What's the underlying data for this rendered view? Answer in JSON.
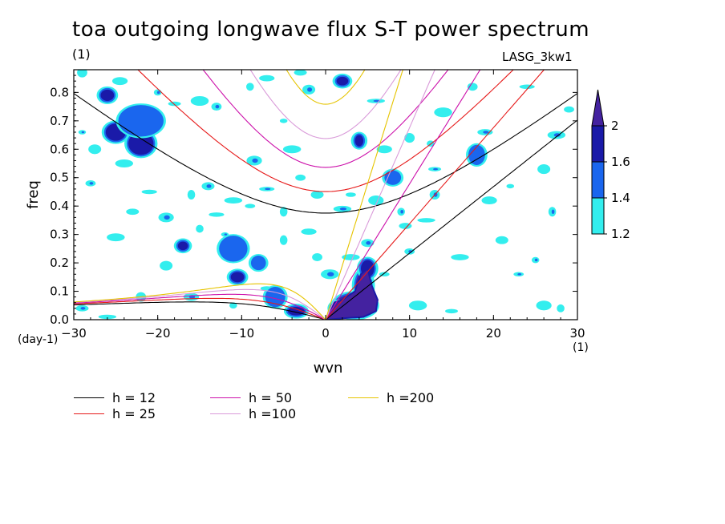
{
  "title": "toa outgoing longwave flux S-T power spectrum",
  "subtitle": "(1)",
  "model_label": "LASG_3kw1",
  "x_unit_left": "(day-1)",
  "x_unit_right": "(1)",
  "colorbar": {
    "levels": [
      1.2,
      1.4,
      1.6,
      2
    ],
    "tick_labels": [
      "1.2",
      "1.4",
      "1.6",
      "2"
    ],
    "colors": [
      "#33eeee",
      "#1a66ee",
      "#1a1aa8",
      "#4422a0"
    ]
  },
  "legend": [
    {
      "label": "h = 12",
      "color": "#000000"
    },
    {
      "label": "h = 25",
      "color": "#e61919"
    },
    {
      "label": "h = 50",
      "color": "#cc10aa"
    },
    {
      "label": "h =100",
      "color": "#d99ad9"
    },
    {
      "label": "h =200",
      "color": "#e6c400"
    }
  ],
  "chart_data": {
    "type": "heatmap",
    "title": "toa outgoing longwave flux S-T power spectrum",
    "xlabel": "wvn",
    "ylabel": "freq",
    "xlim": [
      -30,
      30
    ],
    "ylim": [
      0,
      0.88
    ],
    "xticks": [
      -30,
      -20,
      -10,
      0,
      10,
      20,
      30
    ],
    "yticks": [
      0,
      0.1,
      0.2,
      0.3,
      0.4,
      0.5,
      0.6,
      0.7,
      0.8
    ],
    "xtick_labels": [
      "−30",
      "−20",
      "−10",
      "0",
      "10",
      "20",
      "30"
    ],
    "ytick_labels": [
      "0.0",
      "0.1",
      "0.2",
      "0.3",
      "0.4",
      "0.5",
      "0.6",
      "0.7",
      "0.8"
    ],
    "contour_levels": [
      1.2,
      1.4,
      1.6,
      2
    ],
    "dispersion_curves_equivalent_depth_m": [
      12,
      25,
      50,
      100,
      200
    ],
    "regions": [
      {
        "x": 3.5,
        "y": 0.05,
        "level": 2,
        "rx": 2.4,
        "ry": 0.04
      },
      {
        "x": 4.5,
        "y": 0.12,
        "level": 2,
        "rx": 0.9,
        "ry": 0.05
      },
      {
        "x": 5.0,
        "y": 0.18,
        "level": 1.6,
        "rx": 0.8,
        "ry": 0.03
      },
      {
        "x": 1.5,
        "y": 0.04,
        "level": 1.6,
        "rx": 0.8,
        "ry": 0.02
      },
      {
        "x": -3.5,
        "y": 0.03,
        "level": 1.6,
        "rx": 1.0,
        "ry": 0.015
      },
      {
        "x": -6,
        "y": 0.08,
        "level": 1.4,
        "rx": 1.0,
        "ry": 0.03
      },
      {
        "x": -10.5,
        "y": 0.15,
        "level": 1.6,
        "rx": 0.8,
        "ry": 0.018
      },
      {
        "x": -8,
        "y": 0.2,
        "level": 1.4,
        "rx": 0.7,
        "ry": 0.02
      },
      {
        "x": -11,
        "y": 0.25,
        "level": 1.4,
        "rx": 1.5,
        "ry": 0.04
      },
      {
        "x": -17,
        "y": 0.26,
        "level": 1.6,
        "rx": 0.6,
        "ry": 0.015
      },
      {
        "x": -22,
        "y": 0.62,
        "level": 1.6,
        "rx": 1.5,
        "ry": 0.04
      },
      {
        "x": -25,
        "y": 0.66,
        "level": 1.6,
        "rx": 1.2,
        "ry": 0.03
      },
      {
        "x": -26,
        "y": 0.79,
        "level": 1.6,
        "rx": 0.8,
        "ry": 0.02
      },
      {
        "x": -22,
        "y": 0.7,
        "level": 1.4,
        "rx": 2.5,
        "ry": 0.05
      },
      {
        "x": 2,
        "y": 0.84,
        "level": 1.6,
        "rx": 0.7,
        "ry": 0.015
      },
      {
        "x": 4,
        "y": 0.63,
        "level": 1.6,
        "rx": 0.5,
        "ry": 0.02
      },
      {
        "x": 18,
        "y": 0.58,
        "level": 1.4,
        "rx": 0.8,
        "ry": 0.03
      },
      {
        "x": 8,
        "y": 0.5,
        "level": 1.4,
        "rx": 0.8,
        "ry": 0.02
      }
    ],
    "scatter_patches": [
      [
        -29,
        0.66
      ],
      [
        -27.5,
        0.6
      ],
      [
        -24,
        0.55
      ],
      [
        -28,
        0.48
      ],
      [
        -21,
        0.45
      ],
      [
        -16,
        0.44
      ],
      [
        -14,
        0.47
      ],
      [
        -11,
        0.42
      ],
      [
        -9,
        0.4
      ],
      [
        -19,
        0.36
      ],
      [
        -15,
        0.32
      ],
      [
        -23,
        0.38
      ],
      [
        -26,
        0.78
      ],
      [
        -29,
        0.87
      ],
      [
        -24.5,
        0.84
      ],
      [
        -20,
        0.8
      ],
      [
        -18,
        0.76
      ],
      [
        -15,
        0.77
      ],
      [
        -13,
        0.75
      ],
      [
        -7,
        0.85
      ],
      [
        -5,
        0.7
      ],
      [
        -2,
        0.81
      ],
      [
        -4,
        0.6
      ],
      [
        -3,
        0.5
      ],
      [
        -7,
        0.46
      ],
      [
        -5,
        0.38
      ],
      [
        -1,
        0.44
      ],
      [
        2,
        0.39
      ],
      [
        3,
        0.44
      ],
      [
        6,
        0.42
      ],
      [
        9,
        0.38
      ],
      [
        9.5,
        0.33
      ],
      [
        12,
        0.35
      ],
      [
        13,
        0.44
      ],
      [
        7,
        0.6
      ],
      [
        12.5,
        0.62
      ],
      [
        13,
        0.53
      ],
      [
        14,
        0.73
      ],
      [
        17.5,
        0.82
      ],
      [
        19,
        0.66
      ],
      [
        22,
        0.47
      ],
      [
        26,
        0.53
      ],
      [
        27.5,
        0.65
      ],
      [
        29,
        0.74
      ],
      [
        24,
        0.82
      ],
      [
        27,
        0.38
      ],
      [
        21,
        0.28
      ],
      [
        16,
        0.22
      ],
      [
        23,
        0.16
      ],
      [
        26,
        0.05
      ],
      [
        28,
        0.04
      ],
      [
        -29,
        0.04
      ],
      [
        -26,
        0.01
      ],
      [
        -22,
        0.08
      ],
      [
        -16,
        0.08
      ],
      [
        -11,
        0.05
      ],
      [
        -7,
        0.11
      ],
      [
        0.5,
        0.16
      ],
      [
        -1,
        0.22
      ],
      [
        -2,
        0.31
      ],
      [
        -12,
        0.3
      ],
      [
        -19,
        0.19
      ],
      [
        -25,
        0.29
      ],
      [
        10,
        0.24
      ],
      [
        -13,
        0.37
      ],
      [
        -5,
        0.28
      ],
      [
        5,
        0.27
      ],
      [
        3,
        0.22
      ],
      [
        7,
        0.16
      ],
      [
        -8.5,
        0.56
      ],
      [
        -9,
        0.82
      ],
      [
        -3,
        0.87
      ],
      [
        6,
        0.77
      ],
      [
        10,
        0.64
      ],
      [
        19.5,
        0.42
      ],
      [
        25,
        0.21
      ],
      [
        15,
        0.03
      ],
      [
        11,
        0.05
      ]
    ]
  },
  "axes": {
    "xlabel": "wvn",
    "ylabel": "freq"
  }
}
